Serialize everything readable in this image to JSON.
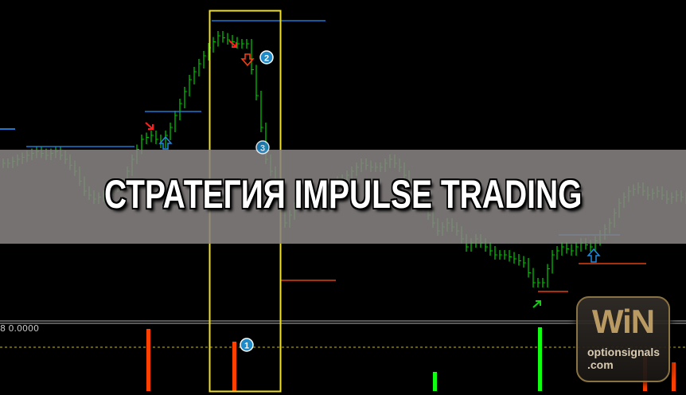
{
  "banner": {
    "title": "СТРАТЕГИЯ IMPULSE TRADING"
  },
  "indicator": {
    "label": "8 0.0000"
  },
  "logo": {
    "mark": "WiN",
    "site_line1": "optionsignals",
    "site_line2": ".com"
  },
  "markers": {
    "m1": "1",
    "m2": "2",
    "m3": "3"
  },
  "colors": {
    "bull_bar": "#00c000",
    "level_blue": "#1e78d2",
    "level_red": "#e04010",
    "highlight_box": "#f0e020",
    "hist_down": "#ff4000",
    "hist_up": "#10ff10",
    "marker_circle": "#1f8ac8"
  },
  "chart_data": {
    "type": "ohlc-bars",
    "title": "",
    "closes": [
      195,
      200,
      205,
      210,
      205,
      210,
      200,
      185,
      160,
      150,
      155,
      165,
      170,
      200,
      225,
      230,
      220,
      240,
      270,
      300,
      320,
      340,
      355,
      350,
      345,
      345,
      280,
      200,
      170,
      120,
      140,
      150,
      160,
      155,
      170,
      175,
      185,
      195,
      190,
      190,
      200,
      190,
      170,
      150,
      130,
      110,
      120,
      110,
      90,
      100,
      90,
      80,
      80,
      75,
      70,
      45,
      45,
      80,
      90,
      85,
      95,
      90,
      105,
      120,
      145,
      160,
      165,
      155,
      160,
      150,
      155,
      150
    ],
    "histogram": [
      {
        "bar_index": 15,
        "value": 78,
        "direction": "down"
      },
      {
        "bar_index": 24,
        "value": 62,
        "direction": "down"
      },
      {
        "bar_index": 45,
        "value": 24,
        "direction": "up"
      },
      {
        "bar_index": 56,
        "value": 80,
        "direction": "up"
      },
      {
        "bar_index": 67,
        "value": 45,
        "direction": "down"
      },
      {
        "bar_index": 70,
        "value": 36,
        "direction": "down"
      }
    ],
    "zero_line": 0.0
  }
}
